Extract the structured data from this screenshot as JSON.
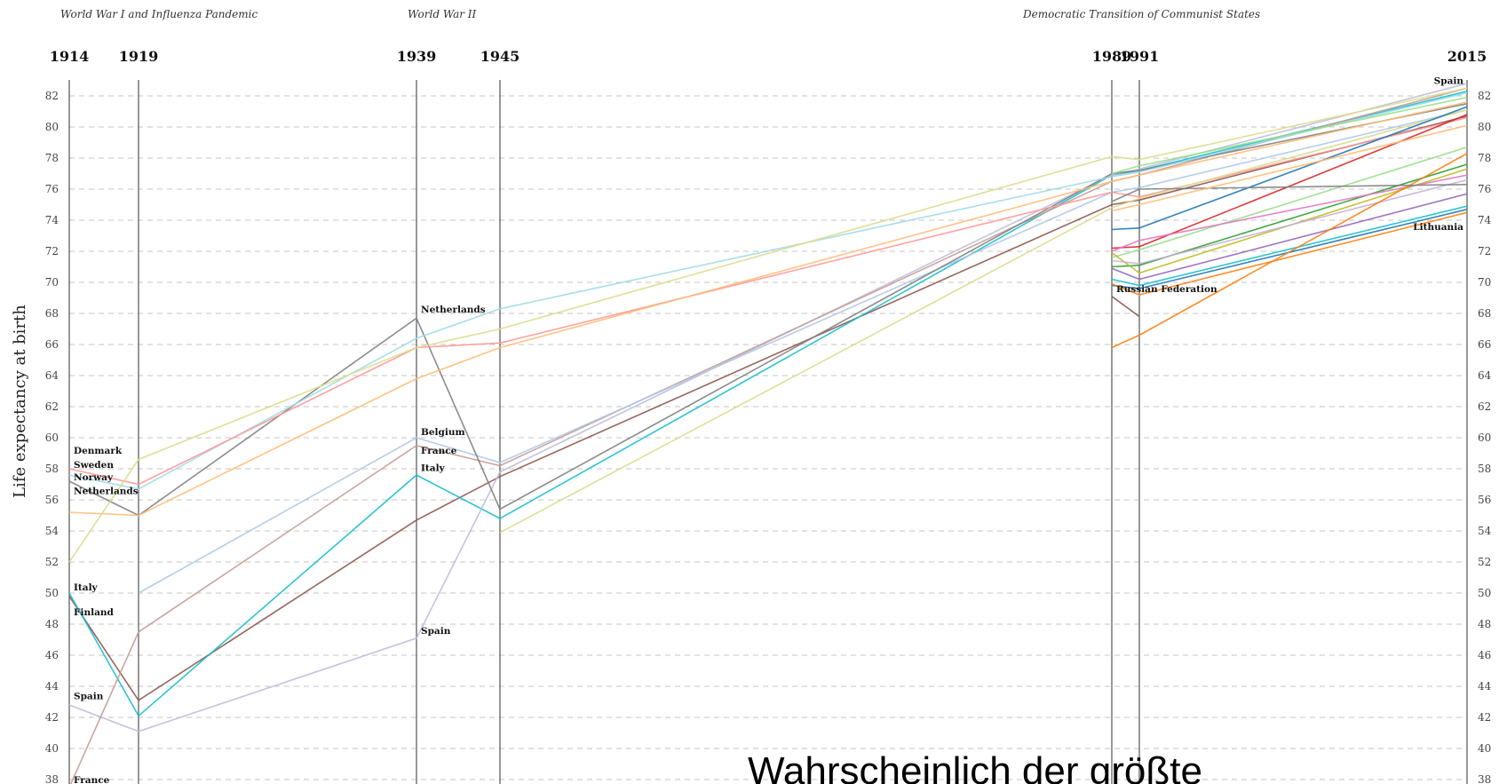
{
  "chart_data": {
    "type": "line",
    "ylabel": "Life expectancy at birth",
    "ylim": [
      38,
      83
    ],
    "yticks": [
      38,
      40,
      42,
      44,
      46,
      48,
      50,
      52,
      54,
      56,
      58,
      60,
      62,
      64,
      66,
      68,
      70,
      72,
      74,
      76,
      78,
      80,
      82
    ],
    "x_years": [
      1914,
      1919,
      1939,
      1945,
      1989,
      1991,
      2015
    ],
    "grid": true,
    "events": [
      {
        "label": "World War I and Influenza Pandemic",
        "at_year": 1914
      },
      {
        "label": "World War II",
        "at_year": 1939
      },
      {
        "label": "Democratic Transition of Communist States",
        "at_year": 1989
      }
    ],
    "country_labels": [
      {
        "text": "Denmark",
        "year": 1914,
        "value": 59.2
      },
      {
        "text": "Sweden",
        "year": 1914,
        "value": 58.3
      },
      {
        "text": "Norway",
        "year": 1914,
        "value": 57.5
      },
      {
        "text": "Netherlands",
        "year": 1914,
        "value": 56.6
      },
      {
        "text": "Italy",
        "year": 1914,
        "value": 50.4
      },
      {
        "text": "Finland",
        "year": 1914,
        "value": 48.8
      },
      {
        "text": "Spain",
        "year": 1914,
        "value": 43.4
      },
      {
        "text": "France",
        "year": 1914,
        "value": 38.0
      },
      {
        "text": "Netherlands",
        "year": 1939,
        "value": 68.3
      },
      {
        "text": "Belgium",
        "year": 1939,
        "value": 60.4
      },
      {
        "text": "France",
        "year": 1939,
        "value": 59.2
      },
      {
        "text": "Italy",
        "year": 1939,
        "value": 58.1
      },
      {
        "text": "Spain",
        "year": 1939,
        "value": 47.6
      },
      {
        "text": "Russian Federation",
        "year": 1989,
        "value": 69.6
      },
      {
        "text": "Spain",
        "year": 2015,
        "value": 83.0
      },
      {
        "text": "Lithuania",
        "year": 2015,
        "value": 73.6
      }
    ],
    "series": [
      {
        "color": "#8c564b",
        "points": [
          [
            1914,
            49.8
          ],
          [
            1919,
            43.1
          ],
          [
            1939,
            54.7
          ],
          [
            1945,
            57.5
          ],
          [
            1989,
            75.0
          ],
          [
            1991,
            75.3
          ],
          [
            2015,
            80.7
          ]
        ]
      },
      {
        "color": "#17becf",
        "points": [
          [
            1914,
            50.0
          ],
          [
            1919,
            42.1
          ],
          [
            1939,
            57.6
          ],
          [
            1945,
            54.8
          ],
          [
            1989,
            76.9
          ],
          [
            1991,
            77.2
          ],
          [
            2015,
            82.3
          ]
        ]
      },
      {
        "color": "#bcbddc",
        "points": [
          [
            1914,
            42.8
          ],
          [
            1919,
            41.1
          ],
          [
            1939,
            47.1
          ],
          [
            1945,
            57.8
          ],
          [
            1989,
            76.9
          ],
          [
            1991,
            77.3
          ],
          [
            2015,
            82.8
          ]
        ]
      },
      {
        "color": "#c49c94",
        "points": [
          [
            1914,
            37.5
          ],
          [
            1919,
            47.5
          ],
          [
            1939,
            59.5
          ],
          [
            1945,
            58.2
          ],
          [
            1989,
            76.5
          ],
          [
            1991,
            76.9
          ],
          [
            2015,
            82.5
          ]
        ]
      },
      {
        "color": "#aec7e8",
        "points": [
          [
            1919,
            50.0
          ],
          [
            1939,
            60.0
          ],
          [
            1945,
            58.4
          ],
          [
            1989,
            75.8
          ],
          [
            1991,
            76.1
          ],
          [
            2015,
            81.1
          ]
        ]
      },
      {
        "color": "#7f7f7f",
        "points": [
          [
            1914,
            57.2
          ],
          [
            1919,
            55.0
          ],
          [
            1939,
            67.7
          ],
          [
            1945,
            55.4
          ],
          [
            1989,
            77.0
          ],
          [
            1991,
            77.2
          ],
          [
            2015,
            81.5
          ]
        ]
      },
      {
        "color": "#9edae5",
        "points": [
          [
            1914,
            57.6
          ],
          [
            1919,
            56.7
          ],
          [
            1939,
            66.4
          ],
          [
            1945,
            68.3
          ],
          [
            1989,
            76.8
          ],
          [
            1991,
            77.1
          ],
          [
            2015,
            82.2
          ]
        ]
      },
      {
        "color": "#ff9896",
        "points": [
          [
            1914,
            58.0
          ],
          [
            1919,
            57.0
          ],
          [
            1939,
            65.8
          ],
          [
            1945,
            66.1
          ],
          [
            1989,
            75.8
          ],
          [
            1991,
            75.5
          ],
          [
            2015,
            80.6
          ]
        ]
      },
      {
        "color": "#ffbb78",
        "points": [
          [
            1914,
            55.2
          ],
          [
            1919,
            55.0
          ],
          [
            1939,
            63.8
          ],
          [
            1945,
            65.8
          ],
          [
            1989,
            76.5
          ],
          [
            1991,
            76.9
          ],
          [
            2015,
            81.6
          ]
        ]
      },
      {
        "color": "#dbdb8d",
        "points": [
          [
            1914,
            52.0
          ],
          [
            1919,
            58.6
          ],
          [
            1939,
            65.8
          ],
          [
            1945,
            67.0
          ],
          [
            1989,
            78.1
          ],
          [
            1991,
            77.9
          ],
          [
            2015,
            82.5
          ]
        ]
      },
      {
        "color": "#dbdb8d",
        "points": [
          [
            1945,
            53.9
          ],
          [
            1989,
            74.8
          ],
          [
            1991,
            75.4
          ],
          [
            2015,
            81.1
          ]
        ]
      },
      {
        "color": "#1f77b4",
        "points": [
          [
            1989,
            73.4
          ],
          [
            1991,
            73.5
          ],
          [
            2015,
            81.3
          ]
        ]
      },
      {
        "color": "#d62728",
        "points": [
          [
            1989,
            72.2
          ],
          [
            1991,
            72.3
          ],
          [
            2015,
            80.8
          ]
        ]
      },
      {
        "color": "#98df8a",
        "points": [
          [
            1989,
            71.6
          ],
          [
            1991,
            72.1
          ],
          [
            2015,
            78.7
          ]
        ]
      },
      {
        "color": "#2ca02c",
        "points": [
          [
            1989,
            71.0
          ],
          [
            1991,
            71.1
          ],
          [
            2015,
            77.6
          ]
        ]
      },
      {
        "color": "#bcbd22",
        "points": [
          [
            1989,
            71.9
          ],
          [
            1991,
            70.6
          ],
          [
            2015,
            77.3
          ]
        ]
      },
      {
        "color": "#9467bd",
        "points": [
          [
            1989,
            70.9
          ],
          [
            1991,
            70.2
          ],
          [
            2015,
            75.7
          ]
        ]
      },
      {
        "color": "#e377c2",
        "points": [
          [
            1989,
            72.0
          ],
          [
            1991,
            72.7
          ],
          [
            2015,
            76.9
          ]
        ]
      },
      {
        "color": "#c5b0d5",
        "points": [
          [
            1989,
            71.4
          ],
          [
            1991,
            71.2
          ],
          [
            2015,
            76.6
          ]
        ]
      },
      {
        "color": "#17becf",
        "points": [
          [
            1989,
            70.2
          ],
          [
            1991,
            69.8
          ],
          [
            2015,
            74.9
          ]
        ]
      },
      {
        "color": "#1f77b4",
        "points": [
          [
            1989,
            69.8
          ],
          [
            1991,
            69.6
          ],
          [
            2015,
            74.7
          ]
        ]
      },
      {
        "color": "#ff7f0e",
        "points": [
          [
            1989,
            69.9
          ],
          [
            1991,
            69.2
          ],
          [
            2015,
            74.5
          ]
        ]
      },
      {
        "color": "#ff7f0e",
        "points": [
          [
            1989,
            65.8
          ],
          [
            1991,
            66.6
          ],
          [
            2015,
            78.3
          ]
        ]
      },
      {
        "color": "#8c564b",
        "points": [
          [
            1989,
            69.1
          ],
          [
            1991,
            67.8
          ]
        ]
      },
      {
        "color": "#7f7f7f",
        "points": [
          [
            1989,
            75.2
          ],
          [
            1991,
            76.0
          ],
          [
            2015,
            76.3
          ]
        ]
      },
      {
        "color": "#ffbb78",
        "points": [
          [
            1989,
            74.6
          ],
          [
            1991,
            75.0
          ],
          [
            2015,
            80.1
          ]
        ]
      },
      {
        "color": "#98df8a",
        "points": [
          [
            1989,
            77.0
          ],
          [
            1991,
            77.5
          ],
          [
            2015,
            81.9
          ]
        ]
      }
    ]
  },
  "overlay": {
    "caption": "Wahrscheinlich der größte"
  }
}
